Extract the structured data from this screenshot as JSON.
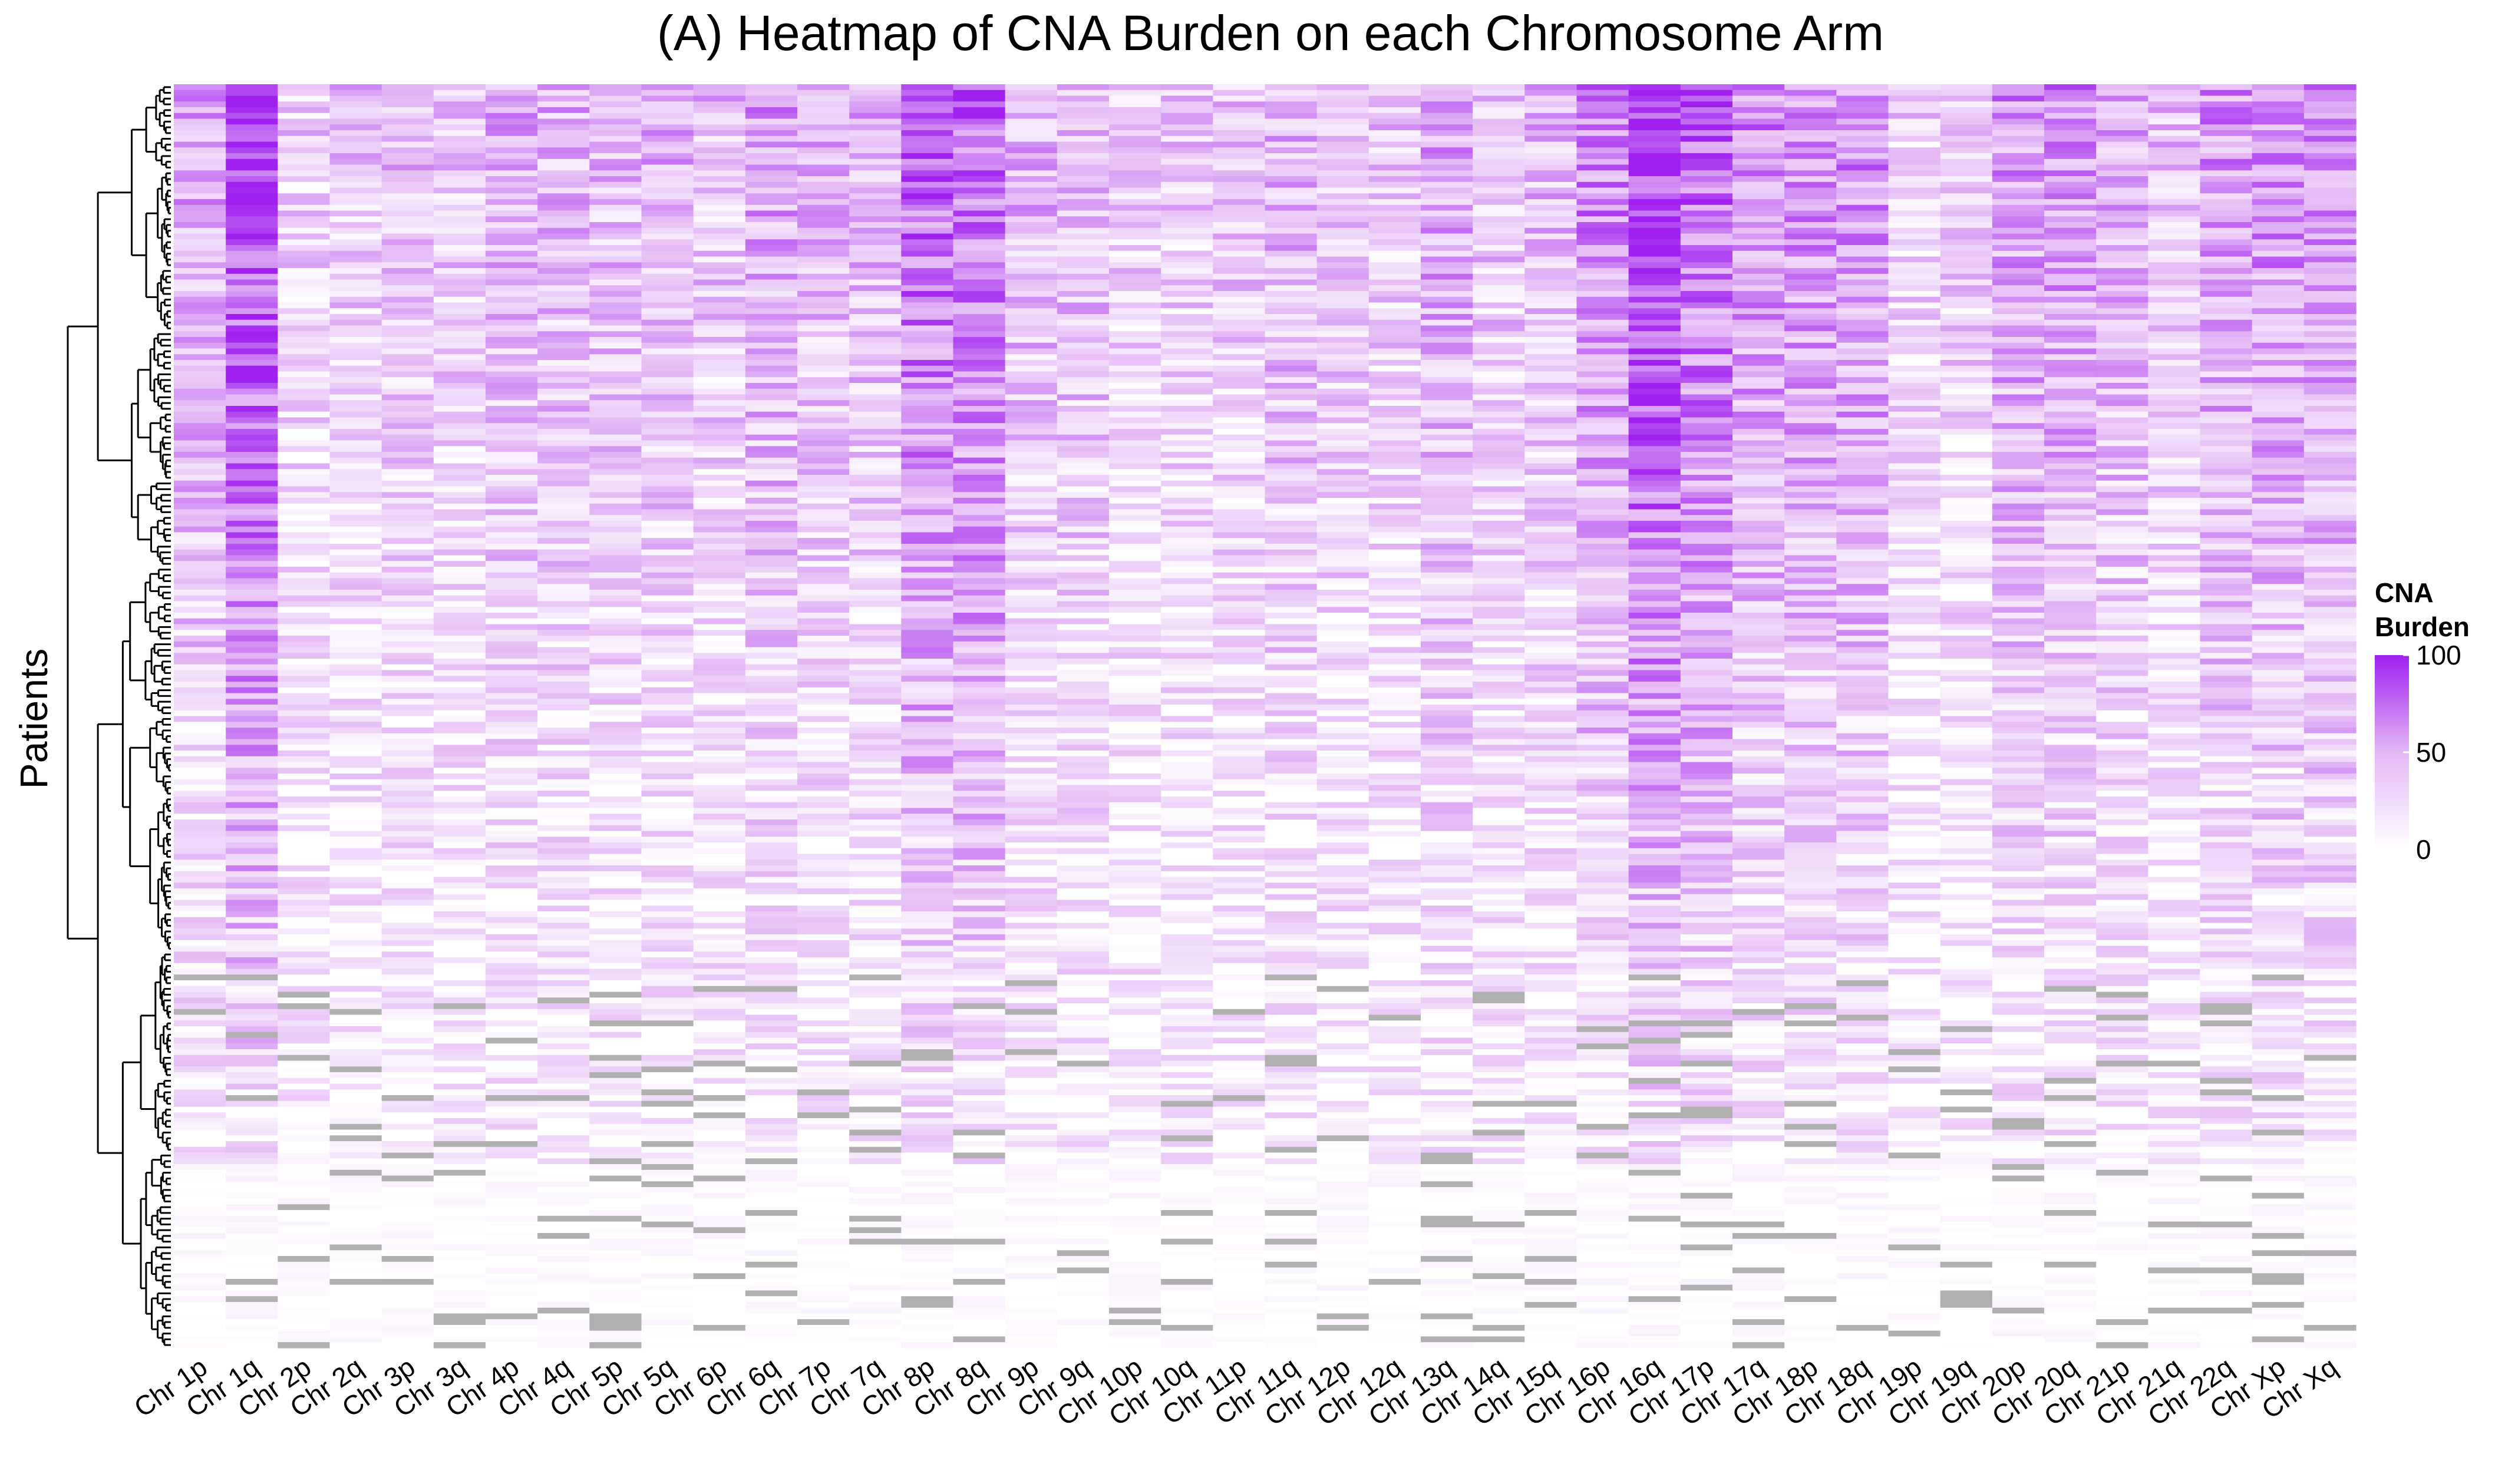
{
  "chart_data": {
    "type": "heatmap",
    "title": "(A) Heatmap of CNA Burden on each Chromosome Arm",
    "ylabel": "Patients",
    "xlabel": "",
    "columns": [
      "Chr 1p",
      "Chr 1q",
      "Chr 2p",
      "Chr 2q",
      "Chr 3p",
      "Chr 3q",
      "Chr 4p",
      "Chr 4q",
      "Chr 5p",
      "Chr 5q",
      "Chr 6p",
      "Chr 6q",
      "Chr 7p",
      "Chr 7q",
      "Chr 8p",
      "Chr 8q",
      "Chr 9p",
      "Chr 9q",
      "Chr 10p",
      "Chr 10q",
      "Chr 11p",
      "Chr 11q",
      "Chr 12p",
      "Chr 12q",
      "Chr 13q",
      "Chr 14q",
      "Chr 15q",
      "Chr 16p",
      "Chr 16q",
      "Chr 17p",
      "Chr 17q",
      "Chr 18p",
      "Chr 18q",
      "Chr 19p",
      "Chr 19q",
      "Chr 20p",
      "Chr 20q",
      "Chr 21p",
      "Chr 21q",
      "Chr 22q",
      "Chr Xp",
      "Chr Xq"
    ],
    "rows_note": "One row per patient, ordered by hierarchical clustering (dendrogram at left); individual patient labels not shown.",
    "value_range": [
      0,
      100
    ],
    "legend": {
      "title_lines": [
        "CNA",
        "Burden"
      ],
      "ticks": [
        0,
        50,
        100
      ],
      "position": "right"
    },
    "colors": {
      "low": "#ffffff",
      "mid": "#e3b7f5",
      "high": "#a020f0",
      "missing": "#b0b0b0"
    },
    "dendrogram": "left",
    "grid": false,
    "column_burden_profile": [
      {
        "column": "Chr 1p",
        "overall": 30
      },
      {
        "column": "Chr 1q",
        "overall": 55
      },
      {
        "column": "Chr 2p",
        "overall": 18
      },
      {
        "column": "Chr 2q",
        "overall": 20
      },
      {
        "column": "Chr 3p",
        "overall": 22
      },
      {
        "column": "Chr 3q",
        "overall": 20
      },
      {
        "column": "Chr 4p",
        "overall": 26
      },
      {
        "column": "Chr 4q",
        "overall": 25
      },
      {
        "column": "Chr 5p",
        "overall": 24
      },
      {
        "column": "Chr 5q",
        "overall": 25
      },
      {
        "column": "Chr 6p",
        "overall": 22
      },
      {
        "column": "Chr 6q",
        "overall": 30
      },
      {
        "column": "Chr 7p",
        "overall": 25
      },
      {
        "column": "Chr 7q",
        "overall": 26
      },
      {
        "column": "Chr 8p",
        "overall": 45
      },
      {
        "column": "Chr 8q",
        "overall": 45
      },
      {
        "column": "Chr 9p",
        "overall": 25
      },
      {
        "column": "Chr 9q",
        "overall": 25
      },
      {
        "column": "Chr 10p",
        "overall": 18
      },
      {
        "column": "Chr 10q",
        "overall": 20
      },
      {
        "column": "Chr 11p",
        "overall": 20
      },
      {
        "column": "Chr 11q",
        "overall": 26
      },
      {
        "column": "Chr 12p",
        "overall": 22
      },
      {
        "column": "Chr 12q",
        "overall": 20
      },
      {
        "column": "Chr 13q",
        "overall": 30
      },
      {
        "column": "Chr 14q",
        "overall": 22
      },
      {
        "column": "Chr 15q",
        "overall": 24
      },
      {
        "column": "Chr 16p",
        "overall": 38
      },
      {
        "column": "Chr 16q",
        "overall": 55
      },
      {
        "column": "Chr 17p",
        "overall": 45
      },
      {
        "column": "Chr 17q",
        "overall": 35
      },
      {
        "column": "Chr 18p",
        "overall": 35
      },
      {
        "column": "Chr 18q",
        "overall": 35
      },
      {
        "column": "Chr 19p",
        "overall": 18
      },
      {
        "column": "Chr 19q",
        "overall": 20
      },
      {
        "column": "Chr 20p",
        "overall": 32
      },
      {
        "column": "Chr 20q",
        "overall": 34
      },
      {
        "column": "Chr 21p",
        "overall": 28
      },
      {
        "column": "Chr 21q",
        "overall": 22
      },
      {
        "column": "Chr 22q",
        "overall": 32
      },
      {
        "column": "Chr Xp",
        "overall": 35
      },
      {
        "column": "Chr Xq",
        "overall": 35
      }
    ]
  }
}
